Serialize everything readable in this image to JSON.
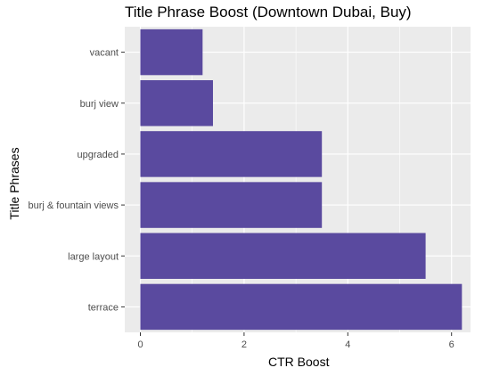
{
  "chart_data": {
    "type": "bar",
    "orientation": "horizontal",
    "title": "Title Phrase Boost (Downtown Dubai, Buy)",
    "xlabel": "CTR Boost",
    "ylabel": "Title Phrases",
    "categories": [
      "vacant",
      "burj view",
      "upgraded",
      "burj & fountain views",
      "large layout",
      "terrace"
    ],
    "values": [
      1.2,
      1.4,
      3.5,
      3.5,
      5.5,
      6.2
    ],
    "xlim": [
      0,
      6.3
    ],
    "xticks": [
      "0",
      "2",
      "4",
      "6"
    ],
    "xtick_values": [
      0,
      2,
      4,
      6
    ],
    "grid": true,
    "bar_color": "#5a4a9f",
    "panel_color": "#ebebeb",
    "grid_color": "#ffffff"
  }
}
